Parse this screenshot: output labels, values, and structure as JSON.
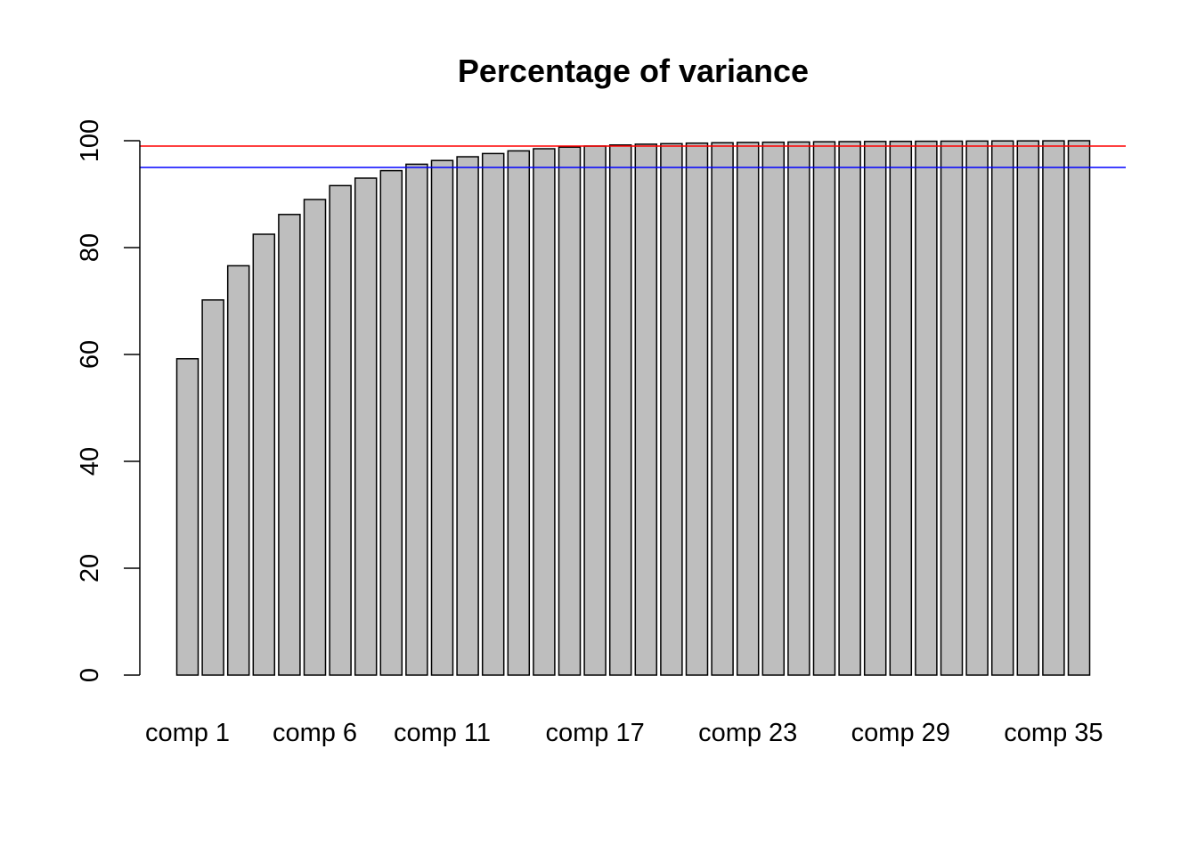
{
  "chart_data": {
    "type": "bar",
    "title": "Percentage of variance",
    "xlabel": "",
    "ylabel": "",
    "ylim": [
      0,
      100
    ],
    "y_ticks": [
      0,
      20,
      40,
      60,
      80,
      100
    ],
    "x_tick_labels": [
      "comp 1",
      "comp 6",
      "comp 11",
      "comp 17",
      "comp 23",
      "comp 29",
      "comp 35"
    ],
    "categories": [
      "comp 1",
      "comp 2",
      "comp 3",
      "comp 4",
      "comp 5",
      "comp 6",
      "comp 7",
      "comp 8",
      "comp 9",
      "comp 10",
      "comp 11",
      "comp 12",
      "comp 13",
      "comp 14",
      "comp 15",
      "comp 16",
      "comp 17",
      "comp 18",
      "comp 19",
      "comp 20",
      "comp 21",
      "comp 22",
      "comp 23",
      "comp 24",
      "comp 25",
      "comp 26",
      "comp 27",
      "comp 28",
      "comp 29",
      "comp 30",
      "comp 31",
      "comp 32",
      "comp 33",
      "comp 34",
      "comp 35",
      "comp 36"
    ],
    "values": [
      59.2,
      70.2,
      76.6,
      82.5,
      86.2,
      89.0,
      91.6,
      93.0,
      94.4,
      95.6,
      96.3,
      97.0,
      97.6,
      98.1,
      98.5,
      98.8,
      99.0,
      99.2,
      99.35,
      99.45,
      99.55,
      99.62,
      99.68,
      99.72,
      99.76,
      99.8,
      99.83,
      99.86,
      99.88,
      99.9,
      99.92,
      99.94,
      99.96,
      99.97,
      99.98,
      100
    ],
    "bar_color": "#bebebe",
    "reference_lines": [
      {
        "value": 99,
        "color": "#ff0000"
      },
      {
        "value": 95,
        "color": "#0000ff"
      }
    ],
    "grid": false
  }
}
